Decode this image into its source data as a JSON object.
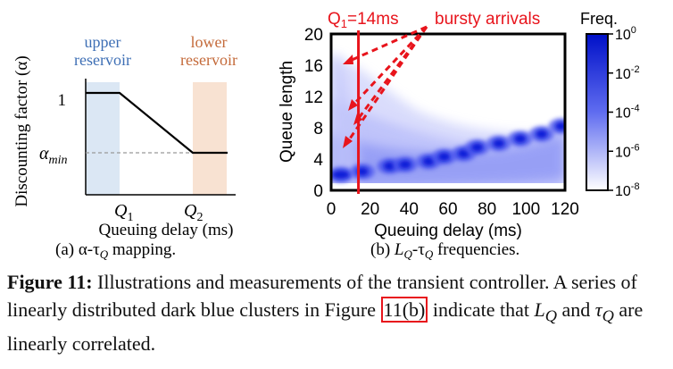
{
  "panel_a": {
    "y_label": "Discounting factor (α)",
    "upper_reservoir": [
      "upper",
      "reservoir"
    ],
    "lower_reservoir": [
      "lower",
      "reservoir"
    ],
    "tick_1": "1",
    "tick_alpha": "α",
    "tick_alpha_sub": "min",
    "tick_q1": "Q",
    "tick_q1_sub": "1",
    "tick_q2": "Q",
    "tick_q2_sub": "2",
    "x_label": "Queuing delay (ms)",
    "subcaption": "(a) α-τ",
    "subcaption_sub": "Q",
    "subcaption_tail": " mapping.",
    "colors": {
      "upper": "#dbe7f4",
      "lower": "#f8e2d2",
      "upper_text": "#3e6fb5",
      "lower_text": "#c46a3a"
    }
  },
  "panel_b": {
    "y_label": "Queue length",
    "x_label": "Queuing delay (ms)",
    "annotation_q1": "Q",
    "annotation_q1_sub": "1",
    "annotation_q1_tail": "=14ms",
    "annotation_bursty": "bursty arrivals",
    "colorbar_title": "Freq.",
    "colorbar_ticks": [
      {
        "base": "10",
        "exp": "0"
      },
      {
        "base": "10",
        "exp": "-2"
      },
      {
        "base": "10",
        "exp": "-4"
      },
      {
        "base": "10",
        "exp": "-6"
      },
      {
        "base": "10",
        "exp": "-8"
      }
    ],
    "subcaption_b": "(b) ",
    "subcaption_L": "L",
    "subcaption_L_sub": "Q",
    "subcaption_dash": "-τ",
    "subcaption_tau_sub": "Q",
    "subcaption_tail": " frequencies.",
    "colors": {
      "annotation": "#e8141c",
      "dark": "#0a1fd8",
      "light": "#c9cdfb"
    }
  },
  "chart_data": [
    {
      "type": "line",
      "ylabel": "Discounting factor (α)",
      "xlabel": "Queuing delay (ms)",
      "x_ticks": [
        "Q1",
        "Q2"
      ],
      "y_ticks": [
        "1",
        "αmin"
      ],
      "series": [
        {
          "points": [
            [
              "0",
              "1"
            ],
            [
              "Q1",
              "1"
            ],
            [
              "Q2",
              "αmin"
            ],
            [
              "end",
              "αmin"
            ]
          ]
        }
      ],
      "regions": [
        "upper reservoir",
        "lower reservoir"
      ]
    },
    {
      "type": "heatmap",
      "xlabel": "Queuing delay (ms)",
      "ylabel": "Queue length",
      "xlim": [
        0,
        120
      ],
      "ylim": [
        0,
        20
      ],
      "x_ticks": [
        0,
        20,
        40,
        60,
        80,
        100,
        120
      ],
      "y_ticks": [
        0,
        4,
        8,
        12,
        16,
        20
      ],
      "colorbar": {
        "title": "Freq.",
        "scale": "log",
        "range": [
          "10^-8",
          "10^0"
        ]
      },
      "vertical_line": {
        "x": 14,
        "label": "Q1=14ms"
      },
      "annotation": "bursty arrivals",
      "dense_clusters": [
        {
          "x": 5,
          "y": 2
        },
        {
          "x": 16,
          "y": 2.4
        },
        {
          "x": 30,
          "y": 3.1
        },
        {
          "x": 38,
          "y": 3.3
        },
        {
          "x": 50,
          "y": 3.7
        },
        {
          "x": 58,
          "y": 4.3
        },
        {
          "x": 68,
          "y": 4.7
        },
        {
          "x": 75,
          "y": 5.5
        },
        {
          "x": 86,
          "y": 6.0
        },
        {
          "x": 97,
          "y": 6.6
        },
        {
          "x": 108,
          "y": 7.2
        },
        {
          "x": 118,
          "y": 8.2
        }
      ]
    }
  ],
  "caption": {
    "label": "Figure 11:",
    "text1": " Illustrations and measurements of the transient controller. A series of linearly distributed dark blue clusters in Figure ",
    "ref": "11(b)",
    "text2": " indicate that ",
    "L": "L",
    "L_sub": "Q",
    "and": " and ",
    "tau": "τ",
    "tau_sub": "Q",
    "text3": " are linearly correlated."
  }
}
